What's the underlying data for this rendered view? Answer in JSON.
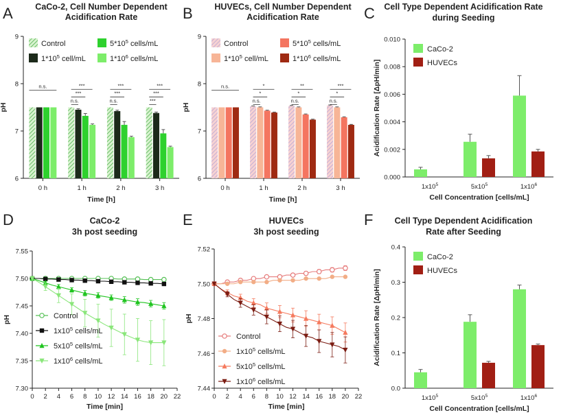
{
  "colors": {
    "caco": [
      "#b8e8a9",
      "#1c2a1a",
      "#2ed12e",
      "#7ded6a"
    ],
    "caco_hatch_line": "#4fb04f",
    "huvec": [
      "#f4c2c2",
      "#f7b597",
      "#f47560",
      "#9f2a12"
    ],
    "huvec_hatch_line": "#b8a6d6",
    "bar_caco": "#7ded6a",
    "bar_huvec": "#a11f14",
    "line_caco": [
      "#55c055",
      "#111111",
      "#1fc41f",
      "#8ae67a"
    ],
    "line_huvec": [
      "#e67a7a",
      "#f2ad86",
      "#f57a5e",
      "#7b1c12"
    ]
  },
  "chart_data": [
    {
      "panel": "A",
      "type": "bar",
      "title": [
        "CaCo-2, Cell Number Dependent",
        "Acidification Rate"
      ],
      "xlabel": "Time [h]",
      "ylabel": "pH",
      "ylim": [
        6,
        9
      ],
      "yticks": [
        "6",
        "7",
        "8",
        "9"
      ],
      "categories": [
        "0 h",
        "1 h",
        "2 h",
        "3 h"
      ],
      "legend": [
        {
          "main": "Control",
          "sup": "",
          "tail": ""
        },
        {
          "main": "1*10",
          "sup": "5",
          "tail": " cell/mL"
        },
        {
          "main": "5*10",
          "sup": "5",
          "tail": " cells/mL"
        },
        {
          "main": "1*10",
          "sup": "6",
          "tail": " cells/mL"
        }
      ],
      "series": [
        {
          "name": "Control",
          "values": [
            7.5,
            7.5,
            7.5,
            7.5
          ],
          "errors": [
            0,
            0,
            0,
            0
          ]
        },
        {
          "name": "1*10^5 cell/mL",
          "values": [
            7.5,
            7.45,
            7.42,
            7.38
          ],
          "errors": [
            0,
            0.02,
            0.02,
            0.02
          ]
        },
        {
          "name": "5*10^5 cells/mL",
          "values": [
            7.5,
            7.32,
            7.13,
            6.95
          ],
          "errors": [
            0,
            0.05,
            0.07,
            0.08
          ]
        },
        {
          "name": "1*10^6 cells/mL",
          "values": [
            7.5,
            7.13,
            6.87,
            6.66
          ],
          "errors": [
            0,
            0.02,
            0.02,
            0.02
          ]
        }
      ],
      "significance": [
        [
          "n.s."
        ],
        [
          "n.s.",
          "***",
          "***"
        ],
        [
          "n.s.",
          "***",
          "***"
        ],
        [
          "***",
          "***",
          "***"
        ]
      ]
    },
    {
      "panel": "B",
      "type": "bar",
      "title": [
        "HUVECs, Cell Number Dependent",
        "Acidification Rate"
      ],
      "xlabel": "Time [h]",
      "ylabel": "pH",
      "ylim": [
        6,
        9
      ],
      "yticks": [
        "6",
        "7",
        "8",
        "9"
      ],
      "categories": [
        "0 h",
        "1 h",
        "2 h",
        "3 h"
      ],
      "legend": [
        {
          "main": "Control",
          "sup": "",
          "tail": ""
        },
        {
          "main": "1*10",
          "sup": "5",
          "tail": " cell/mL"
        },
        {
          "main": "5*10",
          "sup": "5",
          "tail": " cells/mL"
        },
        {
          "main": "1*10",
          "sup": "6",
          "tail": " cells/mL"
        }
      ],
      "series": [
        {
          "name": "Control",
          "values": [
            7.5,
            7.52,
            7.53,
            7.54
          ],
          "errors": [
            0,
            0.01,
            0.01,
            0.01
          ]
        },
        {
          "name": "1*10^5 cell/mL",
          "values": [
            7.5,
            7.5,
            7.5,
            7.5
          ],
          "errors": [
            0,
            0.01,
            0.01,
            0.01
          ]
        },
        {
          "name": "5*10^5 cells/mL",
          "values": [
            7.5,
            7.43,
            7.35,
            7.29
          ],
          "errors": [
            0,
            0.01,
            0.01,
            0.01
          ]
        },
        {
          "name": "1*10^6 cells/mL",
          "values": [
            7.5,
            7.39,
            7.24,
            7.13
          ],
          "errors": [
            0,
            0.01,
            0.01,
            0.01
          ]
        }
      ],
      "significance": [
        [
          "n.s."
        ],
        [
          "n.s.",
          "*",
          "*"
        ],
        [
          "n.s.",
          "*",
          "**"
        ],
        [
          "n.s.",
          "*",
          "***"
        ]
      ]
    },
    {
      "panel": "C",
      "type": "bar",
      "title": [
        "Cell Type Dependent Acidification Rate",
        "during Seeding"
      ],
      "xlabel": "Cell Concentration [cells/mL]",
      "ylabel": "Acidification Rate [ΔpH/min]",
      "ylim": [
        0,
        0.01
      ],
      "yticks": [
        "0.000",
        "0.002",
        "0.004",
        "0.006",
        "0.008",
        "0.010"
      ],
      "categories": [
        {
          "main": "1x10",
          "sup": "5"
        },
        {
          "main": "5x10",
          "sup": "5"
        },
        {
          "main": "1x10",
          "sup": "6"
        }
      ],
      "legend": [
        "CaCo-2",
        "HUVECs"
      ],
      "series": [
        {
          "name": "CaCo-2",
          "values": [
            0.00055,
            0.00255,
            0.0059
          ],
          "errors": [
            0.00015,
            0.00055,
            0.00145
          ]
        },
        {
          "name": "HUVECs",
          "values": [
            0.0,
            0.00135,
            0.00185
          ],
          "errors": [
            0,
            0.0002,
            0.00015
          ]
        }
      ]
    },
    {
      "panel": "D",
      "type": "line",
      "title": [
        "CaCo-2",
        "3h post seeding"
      ],
      "xlabel": "Time [min]",
      "ylabel": "pH",
      "xlim": [
        0,
        22
      ],
      "ylim": [
        7.3,
        7.55
      ],
      "xticks": [
        "0",
        "2",
        "4",
        "6",
        "8",
        "10",
        "12",
        "14",
        "16",
        "18",
        "20",
        "22"
      ],
      "yticks": [
        "7.30",
        "7.35",
        "7.40",
        "7.45",
        "7.50",
        "7.55"
      ],
      "x": [
        0,
        1,
        2,
        3,
        4,
        5,
        6,
        7,
        8,
        9,
        10,
        11,
        12,
        13,
        14,
        15,
        16,
        17,
        18,
        19,
        20
      ],
      "legend": [
        {
          "main": "Control",
          "sup": "",
          "tail": ""
        },
        {
          "main": "1x10",
          "sup": "5",
          "tail": " cells/mL"
        },
        {
          "main": "5x10",
          "sup": "5",
          "tail": " cells/mL"
        },
        {
          "main": "1x10",
          "sup": "6",
          "tail": " cells/mL"
        }
      ],
      "series": [
        {
          "name": "Control",
          "marker": "circle-open",
          "values": [
            7.5,
            7.5,
            7.5,
            7.5,
            7.5,
            7.5,
            7.5,
            7.5,
            7.5,
            7.5,
            7.5,
            7.5,
            7.5,
            7.499,
            7.499,
            7.499,
            7.499,
            7.498,
            7.498,
            7.498,
            7.498
          ],
          "errors": [
            0,
            0.001,
            0.001,
            0.001,
            0.001,
            0.001,
            0.001,
            0.001,
            0.001,
            0.001,
            0.001,
            0.001,
            0.001,
            0.001,
            0.001,
            0.001,
            0.001,
            0.001,
            0.001,
            0.001,
            0.001
          ]
        },
        {
          "name": "1x10^5 cells/mL",
          "marker": "square",
          "values": [
            7.5,
            7.5,
            7.499,
            7.499,
            7.498,
            7.498,
            7.497,
            7.497,
            7.496,
            7.496,
            7.495,
            7.495,
            7.494,
            7.494,
            7.493,
            7.493,
            7.492,
            7.492,
            7.491,
            7.491,
            7.49
          ],
          "errors": [
            0,
            0.001,
            0.001,
            0.001,
            0.001,
            0.001,
            0.001,
            0.001,
            0.001,
            0.001,
            0.002,
            0.002,
            0.002,
            0.002,
            0.002,
            0.002,
            0.002,
            0.002,
            0.002,
            0.002,
            0.002
          ]
        },
        {
          "name": "5x10^5 cells/mL",
          "marker": "triangle-up",
          "values": [
            7.5,
            7.496,
            7.492,
            7.488,
            7.485,
            7.482,
            7.479,
            7.476,
            7.473,
            7.471,
            7.469,
            7.467,
            7.465,
            7.463,
            7.461,
            7.459,
            7.457,
            7.456,
            7.454,
            7.452,
            7.45
          ],
          "errors": [
            0,
            0.002,
            0.003,
            0.003,
            0.004,
            0.004,
            0.004,
            0.005,
            0.005,
            0.005,
            0.005,
            0.005,
            0.005,
            0.006,
            0.006,
            0.006,
            0.006,
            0.006,
            0.006,
            0.006,
            0.006
          ]
        },
        {
          "name": "1x10^6 cells/mL",
          "marker": "triangle-down",
          "values": [
            7.5,
            7.493,
            7.485,
            7.477,
            7.469,
            7.461,
            7.453,
            7.445,
            7.437,
            7.43,
            7.423,
            7.416,
            7.41,
            7.404,
            7.398,
            7.393,
            7.388,
            7.385,
            7.383,
            7.383,
            7.383
          ],
          "errors": [
            0,
            0.004,
            0.007,
            0.01,
            0.013,
            0.016,
            0.019,
            0.022,
            0.025,
            0.028,
            0.03,
            0.032,
            0.034,
            0.036,
            0.037,
            0.038,
            0.039,
            0.04,
            0.04,
            0.041,
            0.042
          ]
        }
      ]
    },
    {
      "panel": "E",
      "type": "line",
      "title": [
        "HUVECs",
        "3h post seeding"
      ],
      "xlabel": "Time [min]",
      "ylabel": "pH",
      "xlim": [
        0,
        22
      ],
      "ylim": [
        7.44,
        7.52
      ],
      "xticks": [
        "0",
        "2",
        "4",
        "6",
        "8",
        "10",
        "12",
        "14",
        "16",
        "18",
        "20",
        "22"
      ],
      "yticks": [
        "7.44",
        "7.46",
        "7.48",
        "7.50",
        "7.52"
      ],
      "x": [
        0,
        1,
        2,
        3,
        4,
        5,
        6,
        7,
        8,
        9,
        10,
        11,
        12,
        13,
        14,
        15,
        16,
        17,
        18,
        19,
        20
      ],
      "legend": [
        {
          "main": "Control",
          "sup": "",
          "tail": ""
        },
        {
          "main": "1x10",
          "sup": "5",
          "tail": " cells/mL"
        },
        {
          "main": "5x10",
          "sup": "5",
          "tail": " cells/mL"
        },
        {
          "main": "1x10",
          "sup": "6",
          "tail": " cells/mL"
        }
      ],
      "series": [
        {
          "name": "Control",
          "marker": "circle-open",
          "values": [
            7.5,
            7.5,
            7.501,
            7.501,
            7.502,
            7.502,
            7.503,
            7.503,
            7.504,
            7.504,
            7.504,
            7.505,
            7.505,
            7.506,
            7.506,
            7.507,
            7.507,
            7.508,
            7.508,
            7.509,
            7.509
          ],
          "errors": [
            0,
            0.0005,
            0.0005,
            0.0005,
            0.0006,
            0.0006,
            0.0007,
            0.0007,
            0.0008,
            0.0008,
            0.0009,
            0.0009,
            0.001,
            0.001,
            0.0011,
            0.0011,
            0.0012,
            0.0012,
            0.0013,
            0.0013,
            0.0014
          ]
        },
        {
          "name": "1x10^5 cells/mL",
          "marker": "circle",
          "values": [
            7.5,
            7.5,
            7.5,
            7.5,
            7.501,
            7.501,
            7.501,
            7.501,
            7.501,
            7.502,
            7.502,
            7.502,
            7.502,
            7.502,
            7.503,
            7.503,
            7.503,
            7.503,
            7.504,
            7.504,
            7.504
          ],
          "errors": [
            0,
            0.0003,
            0.0003,
            0.0003,
            0.0003,
            0.0003,
            0.0003,
            0.0003,
            0.0003,
            0.0003,
            0.0004,
            0.0004,
            0.0004,
            0.0004,
            0.0004,
            0.0004,
            0.0004,
            0.0004,
            0.0004,
            0.0004,
            0.0004
          ]
        },
        {
          "name": "5x10^5 cells/mL",
          "marker": "triangle-up",
          "values": [
            7.5,
            7.497,
            7.495,
            7.493,
            7.492,
            7.49,
            7.489,
            7.488,
            7.486,
            7.485,
            7.484,
            7.483,
            7.482,
            7.481,
            7.48,
            7.479,
            7.478,
            7.477,
            7.476,
            7.474,
            7.472
          ],
          "errors": [
            0,
            0.001,
            0.0015,
            0.002,
            0.002,
            0.0025,
            0.0025,
            0.003,
            0.003,
            0.0035,
            0.0035,
            0.004,
            0.004,
            0.004,
            0.0045,
            0.0045,
            0.0045,
            0.005,
            0.005,
            0.005,
            0.0055
          ]
        },
        {
          "name": "1x10^6 cells/mL",
          "marker": "triangle-down",
          "values": [
            7.5,
            7.497,
            7.494,
            7.491,
            7.489,
            7.487,
            7.485,
            7.483,
            7.481,
            7.479,
            7.477,
            7.475,
            7.474,
            7.472,
            7.47,
            7.469,
            7.467,
            7.466,
            7.465,
            7.464,
            7.462
          ],
          "errors": [
            0,
            0.001,
            0.0015,
            0.002,
            0.0025,
            0.003,
            0.003,
            0.0035,
            0.004,
            0.0045,
            0.0045,
            0.005,
            0.005,
            0.0055,
            0.006,
            0.006,
            0.0065,
            0.0065,
            0.007,
            0.007,
            0.0075
          ]
        }
      ]
    },
    {
      "panel": "F",
      "type": "bar",
      "title": [
        "Cell Type Dependent Acidification",
        "Rate after Seeding"
      ],
      "xlabel": "Cell Concentration [cells/mL]",
      "ylabel": "Acidification Rate [ΔpH/min]",
      "ylim": [
        0,
        0.4
      ],
      "yticks": [
        "0.0",
        "0.1",
        "0.2",
        "0.3",
        "0.4"
      ],
      "categories": [
        {
          "main": "1x10",
          "sup": "5"
        },
        {
          "main": "5x10",
          "sup": "5"
        },
        {
          "main": "1x10",
          "sup": "6"
        }
      ],
      "legend": [
        "CaCo-2",
        "HUVECs"
      ],
      "series": [
        {
          "name": "CaCo-2",
          "values": [
            0.045,
            0.188,
            0.28
          ],
          "errors": [
            0.008,
            0.02,
            0.012
          ]
        },
        {
          "name": "HUVECs",
          "values": [
            0.0,
            0.072,
            0.122
          ],
          "errors": [
            0,
            0.004,
            0.003
          ]
        }
      ]
    }
  ]
}
